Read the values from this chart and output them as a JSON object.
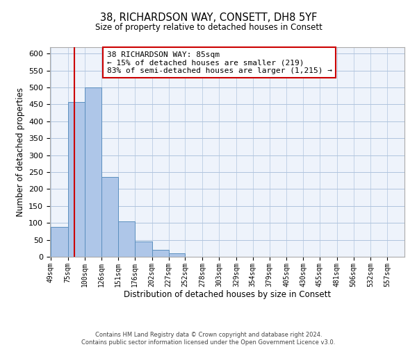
{
  "title": "38, RICHARDSON WAY, CONSETT, DH8 5YF",
  "subtitle": "Size of property relative to detached houses in Consett",
  "xlabel": "Distribution of detached houses by size in Consett",
  "ylabel": "Number of detached properties",
  "annotation_line1": "38 RICHARDSON WAY: 85sqm",
  "annotation_line2": "← 15% of detached houses are smaller (219)",
  "annotation_line3": "83% of semi-detached houses are larger (1,215) →",
  "property_size": 85,
  "bar_labels": [
    "49sqm",
    "75sqm",
    "100sqm",
    "126sqm",
    "151sqm",
    "176sqm",
    "202sqm",
    "227sqm",
    "252sqm",
    "278sqm",
    "303sqm",
    "329sqm",
    "354sqm",
    "379sqm",
    "405sqm",
    "430sqm",
    "455sqm",
    "481sqm",
    "506sqm",
    "532sqm",
    "557sqm"
  ],
  "bar_left_edges": [
    49,
    75,
    100,
    126,
    151,
    176,
    202,
    227,
    252,
    278,
    303,
    329,
    354,
    379,
    405,
    430,
    455,
    481,
    506,
    532,
    557
  ],
  "bar_widths": [
    26,
    25,
    26,
    25,
    25,
    26,
    25,
    25,
    26,
    25,
    26,
    25,
    25,
    26,
    25,
    25,
    26,
    25,
    26,
    25,
    25
  ],
  "bar_heights": [
    88,
    458,
    500,
    236,
    105,
    45,
    20,
    10,
    1,
    0,
    0,
    0,
    0,
    0,
    1,
    0,
    1,
    0,
    0,
    0,
    1
  ],
  "bar_color": "#aec6e8",
  "bar_edge_color": "#5b8fbe",
  "vline_x": 85,
  "vline_color": "#cc0000",
  "ylim": [
    0,
    620
  ],
  "yticks": [
    0,
    50,
    100,
    150,
    200,
    250,
    300,
    350,
    400,
    450,
    500,
    550,
    600
  ],
  "grid_color": "#b0c4de",
  "background_color": "#eef3fb",
  "footer_line1": "Contains HM Land Registry data © Crown copyright and database right 2024.",
  "footer_line2": "Contains public sector information licensed under the Open Government Licence v3.0."
}
